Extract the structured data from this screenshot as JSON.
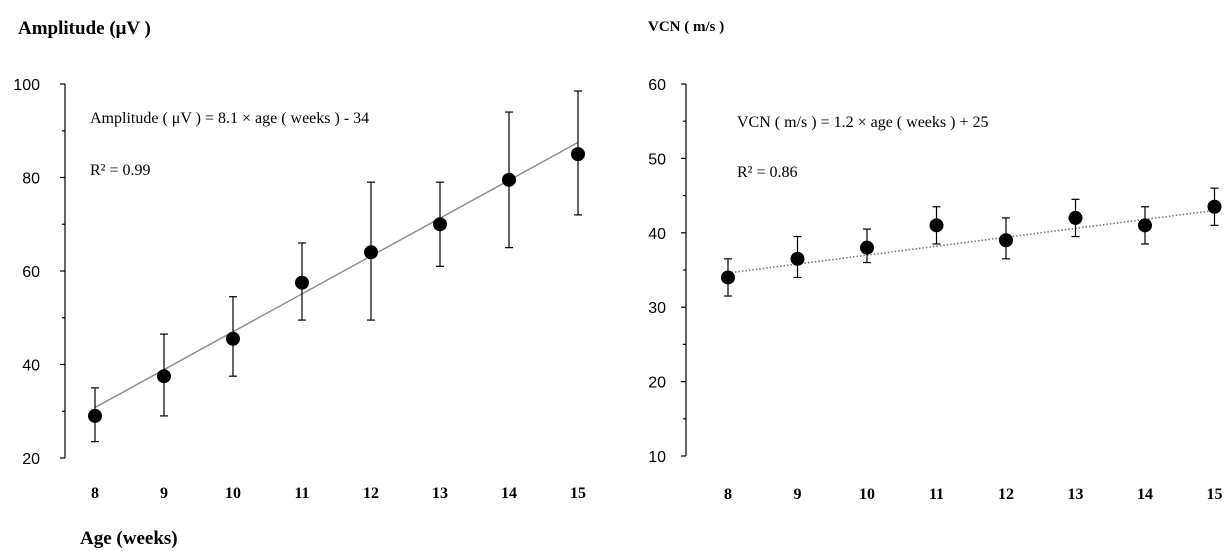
{
  "chart_data": [
    {
      "type": "scatter",
      "title": "Amplitude (μV )",
      "xlabel": "Age (weeks)",
      "ylabel": "",
      "ylim": [
        20,
        100
      ],
      "yticks": [
        "20",
        "40",
        "60",
        "80",
        "100"
      ],
      "x": [
        8,
        9,
        10,
        11,
        12,
        13,
        14,
        15
      ],
      "xtick_labels": [
        "8",
        "9",
        "10",
        "11",
        "12",
        "13",
        "14",
        "15"
      ],
      "values": [
        29,
        37.5,
        45.5,
        57.5,
        64,
        70,
        79.5,
        85
      ],
      "err_upper": [
        35,
        46.5,
        54.5,
        66,
        79,
        79,
        94,
        98.5
      ],
      "err_lower": [
        23.5,
        29,
        37.5,
        49.5,
        49.5,
        61,
        65,
        72
      ],
      "fit": {
        "slope": 8.1,
        "intercept": -34,
        "x_range": [
          8,
          15
        ]
      },
      "equation": "Amplitude ( μV ) =  8.1 × age ( weeks ) - 34",
      "r2": "R² = 0.99"
    },
    {
      "type": "scatter",
      "title": "VCN ( m/s )",
      "xlabel": "",
      "ylabel": "",
      "ylim": [
        10,
        60
      ],
      "yticks": [
        "10",
        "20",
        "30",
        "40",
        "50",
        "60"
      ],
      "x": [
        8,
        9,
        10,
        11,
        12,
        13,
        14,
        15
      ],
      "xtick_labels": [
        "8",
        "9",
        "10",
        "11",
        "12",
        "13",
        "14",
        "15"
      ],
      "values": [
        34,
        36.5,
        38,
        41,
        39,
        42,
        41,
        43.5
      ],
      "err_upper": [
        36.5,
        39.5,
        40.5,
        43.5,
        42,
        44.5,
        43.5,
        46
      ],
      "err_lower": [
        31.5,
        34,
        36,
        38.5,
        36.5,
        39.5,
        38.5,
        41
      ],
      "fit": {
        "slope": 1.2,
        "intercept": 25,
        "x_range": [
          8,
          15
        ]
      },
      "equation": "VCN ( m/s ) = 1.2 × age ( weeks ) + 25",
      "r2": "R² = 0.86"
    }
  ]
}
